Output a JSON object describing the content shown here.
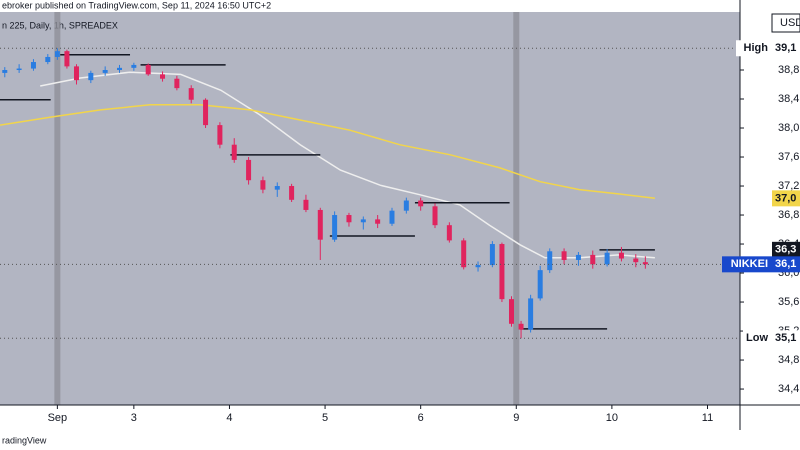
{
  "chart_data": {
    "type": "candlestick",
    "header": "ebroker published on TradingView.com, Sep 11, 2024 16:50 UTC+2",
    "subtitle": "n 225, Daily, 1h, SPREADEX",
    "currency": "USD",
    "footer": "radingView",
    "up_color": "#2a7de1",
    "down_color": "#e0245e",
    "x": [
      -0.55,
      -0.4,
      -0.25,
      -0.1,
      0.0,
      0.1,
      0.2,
      0.35,
      0.5,
      0.65,
      0.8,
      0.95,
      1.1,
      1.25,
      1.4,
      1.55,
      1.7,
      1.85,
      2.0,
      2.15,
      2.3,
      2.45,
      2.6,
      2.75,
      2.9,
      3.05,
      3.2,
      3.35,
      3.5,
      3.65,
      3.8,
      3.95,
      4.1,
      4.25,
      4.4,
      4.55,
      4.65,
      4.75,
      4.85,
      4.95,
      5.05,
      5.15,
      5.3,
      5.45,
      5.6,
      5.75,
      5.9,
      6.05,
      6.15
    ],
    "open": [
      38760,
      38800,
      38820,
      38910,
      38980,
      39060,
      38850,
      38660,
      38760,
      38800,
      38830,
      38870,
      38740,
      38680,
      38550,
      38390,
      38040,
      37770,
      37560,
      37280,
      37150,
      37200,
      37010,
      36870,
      36460,
      36800,
      36700,
      36740,
      36680,
      36860,
      37000,
      36920,
      36660,
      36450,
      36080,
      36110,
      36400,
      35640,
      35300,
      35220,
      35650,
      36040,
      36300,
      36180,
      36250,
      36120,
      36280,
      36200,
      36150
    ],
    "high": [
      38840,
      38880,
      38950,
      39020,
      39100,
      39080,
      38880,
      38790,
      38850,
      38870,
      38900,
      38890,
      38780,
      38720,
      38590,
      38410,
      38080,
      37860,
      37600,
      37330,
      37250,
      37230,
      37080,
      36900,
      36850,
      36830,
      36780,
      36800,
      36900,
      37040,
      37040,
      36960,
      36700,
      36480,
      36160,
      36440,
      36420,
      35680,
      35340,
      35700,
      36100,
      36340,
      36340,
      36290,
      36310,
      36330,
      36360,
      36260,
      36230
    ],
    "low": [
      38700,
      38760,
      38790,
      38880,
      38940,
      38820,
      38600,
      38620,
      38720,
      38760,
      38790,
      38720,
      38640,
      38520,
      38340,
      38000,
      37720,
      37520,
      37220,
      37100,
      37050,
      36980,
      36840,
      36180,
      36430,
      36640,
      36600,
      36620,
      36650,
      36820,
      36860,
      36620,
      36420,
      36050,
      36020,
      36080,
      35600,
      35260,
      35100,
      35180,
      35620,
      36000,
      36120,
      36100,
      36060,
      36090,
      36160,
      36080,
      36060
    ],
    "close": [
      38800,
      38820,
      38910,
      38980,
      39060,
      38850,
      38660,
      38760,
      38800,
      38830,
      38870,
      38740,
      38680,
      38550,
      38390,
      38040,
      37770,
      37560,
      37280,
      37150,
      37200,
      37010,
      36870,
      36460,
      36800,
      36700,
      36740,
      36680,
      36860,
      37000,
      36920,
      36660,
      36450,
      36080,
      36110,
      36400,
      35640,
      35300,
      35220,
      35650,
      36040,
      36300,
      36180,
      36250,
      36120,
      36280,
      36200,
      36150,
      36120
    ],
    "lines": [
      {
        "color": "#eeeeee",
        "x": [
          -0.18,
          0.24,
          0.76,
          1.29,
          1.71,
          2.12,
          2.54,
          2.96,
          3.38,
          3.79,
          4.21,
          4.52,
          4.84,
          5.1,
          5.46,
          5.87,
          6.25
        ],
        "values": [
          38580,
          38690,
          38770,
          38740,
          38520,
          38180,
          37770,
          37420,
          37210,
          37080,
          36940,
          36660,
          36390,
          36210,
          36210,
          36250,
          36210
        ]
      },
      {
        "color": "#f2d54a",
        "x": [
          -0.6,
          -0.07,
          0.45,
          0.97,
          1.49,
          2.02,
          2.54,
          3.06,
          3.58,
          4.11,
          4.63,
          5.05,
          5.46,
          5.88,
          6.25
        ],
        "values": [
          38040,
          38150,
          38250,
          38320,
          38320,
          38250,
          38110,
          37970,
          37770,
          37630,
          37450,
          37260,
          37150,
          37090,
          37030
        ]
      }
    ],
    "levels": [
      {
        "start": 0.03,
        "end": 0.76,
        "value": 39010
      },
      {
        "start": 0.87,
        "end": 1.76,
        "value": 38870
      },
      {
        "start": -0.6,
        "end": -0.07,
        "value": 38390
      },
      {
        "start": 1.81,
        "end": 2.75,
        "value": 37630
      },
      {
        "start": 2.85,
        "end": 3.74,
        "value": 36510
      },
      {
        "start": 3.74,
        "end": 4.73,
        "value": 36970
      },
      {
        "start": 4.84,
        "end": 5.75,
        "value": 35230
      },
      {
        "start": 5.67,
        "end": 6.25,
        "value": 36320
      }
    ],
    "price_tags": [
      {
        "name": "High",
        "label": "39,1",
        "value": 39100,
        "color": "#ffffff",
        "text_color": "#131722",
        "dotted": true
      },
      {
        "label": "37,0",
        "value": 37030,
        "color": "#f2d54a",
        "text_color": "#131722",
        "dotted": false
      },
      {
        "label": "36,3",
        "value": 36320,
        "color": "#131722",
        "text_color": "#ffffff",
        "dotted": false
      },
      {
        "name": "NIKKEI",
        "label": "36,1",
        "value": 36120,
        "color": "#1848cc",
        "text_color": "#ffffff",
        "dotted": true
      },
      {
        "name": "Low",
        "label": "35,1",
        "value": 35100,
        "color": "#ffffff",
        "text_color": "#131722",
        "dotted": true
      }
    ],
    "xlim": [
      -0.6,
      7.14
    ],
    "xticks": [
      {
        "value": 0,
        "label": "Sep"
      },
      {
        "value": 0.8,
        "label": "3"
      },
      {
        "value": 1.8,
        "label": "4"
      },
      {
        "value": 2.8,
        "label": "5"
      },
      {
        "value": 3.8,
        "label": "6"
      },
      {
        "value": 4.8,
        "label": "9"
      },
      {
        "value": 5.8,
        "label": "10"
      },
      {
        "value": 6.8,
        "label": "11"
      }
    ],
    "ylim": [
      34180,
      39600
    ],
    "yticks": [
      {
        "value": 38800,
        "label": "38,8"
      },
      {
        "value": 38400,
        "label": "38,4"
      },
      {
        "value": 38000,
        "label": "38,0"
      },
      {
        "value": 37600,
        "label": "37,6"
      },
      {
        "value": 37200,
        "label": "37,2"
      },
      {
        "value": 36800,
        "label": "36,8"
      },
      {
        "value": 36400,
        "label": "36,4"
      },
      {
        "value": 36000,
        "label": "36,0"
      },
      {
        "value": 35600,
        "label": "35,6"
      },
      {
        "value": 35200,
        "label": "35,2"
      },
      {
        "value": 34800,
        "label": "34,8"
      },
      {
        "value": 34400,
        "label": "34,4"
      }
    ]
  }
}
